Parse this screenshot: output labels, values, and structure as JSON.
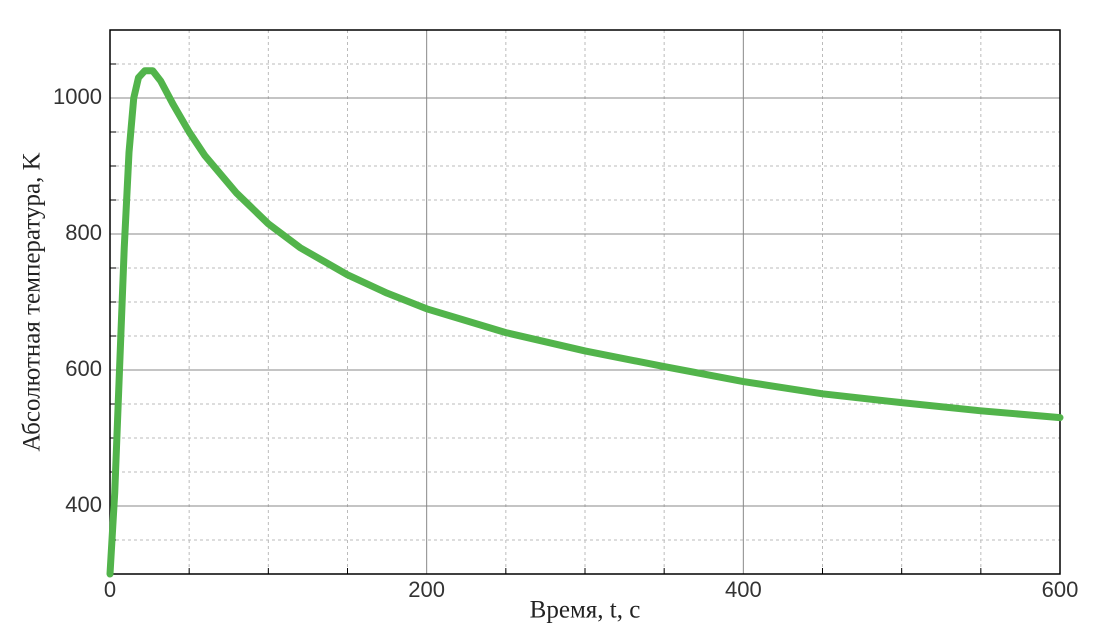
{
  "chart_data": {
    "type": "line",
    "xlabel": "Время, t, с",
    "ylabel": "Абсолютная температура, K",
    "x": [
      0,
      3,
      6,
      9,
      12,
      15,
      18,
      22,
      27,
      32,
      40,
      50,
      60,
      80,
      100,
      120,
      150,
      175,
      200,
      250,
      300,
      350,
      400,
      450,
      500,
      550,
      600
    ],
    "series": [
      {
        "color": "#52b44b",
        "values": [
          300,
          420,
          600,
          780,
          920,
          1000,
          1030,
          1040,
          1040,
          1025,
          990,
          950,
          915,
          860,
          815,
          780,
          740,
          713,
          690,
          655,
          628,
          605,
          583,
          565,
          552,
          540,
          530
        ]
      }
    ],
    "xlim": [
      0,
      600
    ],
    "ylim": [
      300,
      1100
    ],
    "xticks": [
      0,
      200,
      400,
      600
    ],
    "yticks": [
      400,
      600,
      800,
      1000
    ],
    "xminorticks": [
      50,
      100,
      150,
      250,
      300,
      350,
      450,
      500,
      550
    ],
    "yminorticks": [
      350,
      450,
      500,
      550,
      650,
      700,
      750,
      850,
      900,
      950,
      1050
    ],
    "grid": true
  }
}
